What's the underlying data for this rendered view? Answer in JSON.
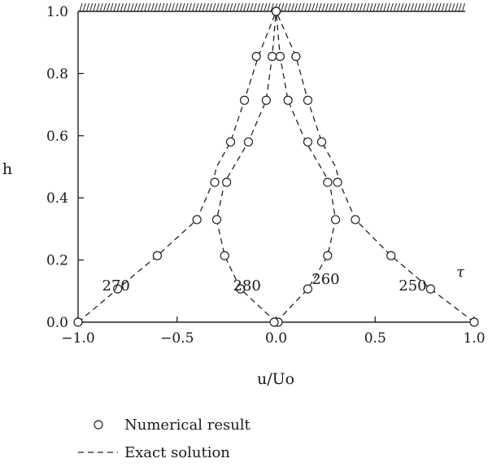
{
  "chart_data": {
    "type": "scatter",
    "xlabel": "u/Uo",
    "ylabel": "h",
    "xlim": [
      -1.0,
      1.0
    ],
    "ylim": [
      0.0,
      1.0
    ],
    "x_ticks": [
      -1.0,
      -0.5,
      0.0,
      0.5,
      1.0
    ],
    "x_tick_labels": [
      "−1.0",
      "−0.5",
      "0.0",
      "0.5",
      "1.0"
    ],
    "y_ticks": [
      0.0,
      0.2,
      0.4,
      0.6,
      0.8,
      1.0
    ],
    "y_tick_labels": [
      "0.0",
      "0.2",
      "0.4",
      "0.6",
      "0.8",
      "1.0"
    ],
    "grid": false,
    "top_boundary": "hatched wall",
    "legend": {
      "placement": "bottom",
      "entries": [
        {
          "marker": "circle",
          "label": "Numerical result"
        },
        {
          "marker": "dashed",
          "label": "Exact solution"
        }
      ]
    },
    "series_label_parameter": "τ",
    "series": [
      {
        "curve_label": "250",
        "exact": [
          [
            1.0,
            0.0
          ],
          [
            0.78,
            0.107
          ],
          [
            0.58,
            0.214
          ],
          [
            0.4,
            0.33
          ],
          [
            0.32,
            0.45
          ],
          [
            0.3,
            0.5
          ],
          [
            0.23,
            0.58
          ],
          [
            0.16,
            0.714
          ],
          [
            0.1,
            0.855
          ],
          [
            0.0,
            1.0
          ]
        ],
        "numerical": [
          [
            1.0,
            0.0
          ],
          [
            0.78,
            0.107
          ],
          [
            0.58,
            0.214
          ],
          [
            0.4,
            0.33
          ],
          [
            0.31,
            0.45
          ],
          [
            0.23,
            0.58
          ],
          [
            0.16,
            0.714
          ],
          [
            0.1,
            0.855
          ],
          [
            0.0,
            1.0
          ]
        ]
      },
      {
        "curve_label": "260",
        "exact": [
          [
            0.0,
            0.0
          ],
          [
            0.16,
            0.107
          ],
          [
            0.26,
            0.214
          ],
          [
            0.3,
            0.33
          ],
          [
            0.27,
            0.45
          ],
          [
            0.15,
            0.58
          ],
          [
            0.06,
            0.714
          ],
          [
            0.02,
            0.855
          ],
          [
            0.0,
            1.0
          ]
        ],
        "numerical": [
          [
            0.01,
            0.0
          ],
          [
            0.16,
            0.107
          ],
          [
            0.26,
            0.214
          ],
          [
            0.3,
            0.33
          ],
          [
            0.26,
            0.45
          ],
          [
            0.16,
            0.58
          ],
          [
            0.06,
            0.714
          ],
          [
            0.02,
            0.855
          ],
          [
            0.0,
            1.0
          ]
        ]
      },
      {
        "curve_label": "270",
        "exact": [
          [
            -1.0,
            0.0
          ],
          [
            -0.8,
            0.107
          ],
          [
            -0.6,
            0.214
          ],
          [
            -0.4,
            0.33
          ],
          [
            -0.32,
            0.45
          ],
          [
            -0.3,
            0.5
          ],
          [
            -0.23,
            0.58
          ],
          [
            -0.16,
            0.714
          ],
          [
            -0.09,
            0.855
          ],
          [
            0.0,
            1.0
          ]
        ],
        "numerical": [
          [
            -1.0,
            0.0
          ],
          [
            -0.8,
            0.107
          ],
          [
            -0.6,
            0.214
          ],
          [
            -0.4,
            0.33
          ],
          [
            -0.31,
            0.45
          ],
          [
            -0.23,
            0.58
          ],
          [
            -0.16,
            0.714
          ],
          [
            -0.1,
            0.855
          ],
          [
            0.0,
            1.0
          ]
        ]
      },
      {
        "curve_label": "280",
        "exact": [
          [
            0.0,
            0.0
          ],
          [
            -0.18,
            0.107
          ],
          [
            -0.26,
            0.214
          ],
          [
            -0.3,
            0.33
          ],
          [
            -0.26,
            0.45
          ],
          [
            -0.14,
            0.58
          ],
          [
            -0.05,
            0.714
          ],
          [
            -0.02,
            0.855
          ],
          [
            0.0,
            1.0
          ]
        ],
        "numerical": [
          [
            -0.01,
            0.0
          ],
          [
            -0.18,
            0.107
          ],
          [
            -0.26,
            0.214
          ],
          [
            -0.3,
            0.33
          ],
          [
            -0.25,
            0.45
          ],
          [
            -0.14,
            0.58
          ],
          [
            -0.05,
            0.714
          ],
          [
            -0.02,
            0.855
          ],
          [
            0.0,
            1.0
          ]
        ]
      }
    ]
  }
}
